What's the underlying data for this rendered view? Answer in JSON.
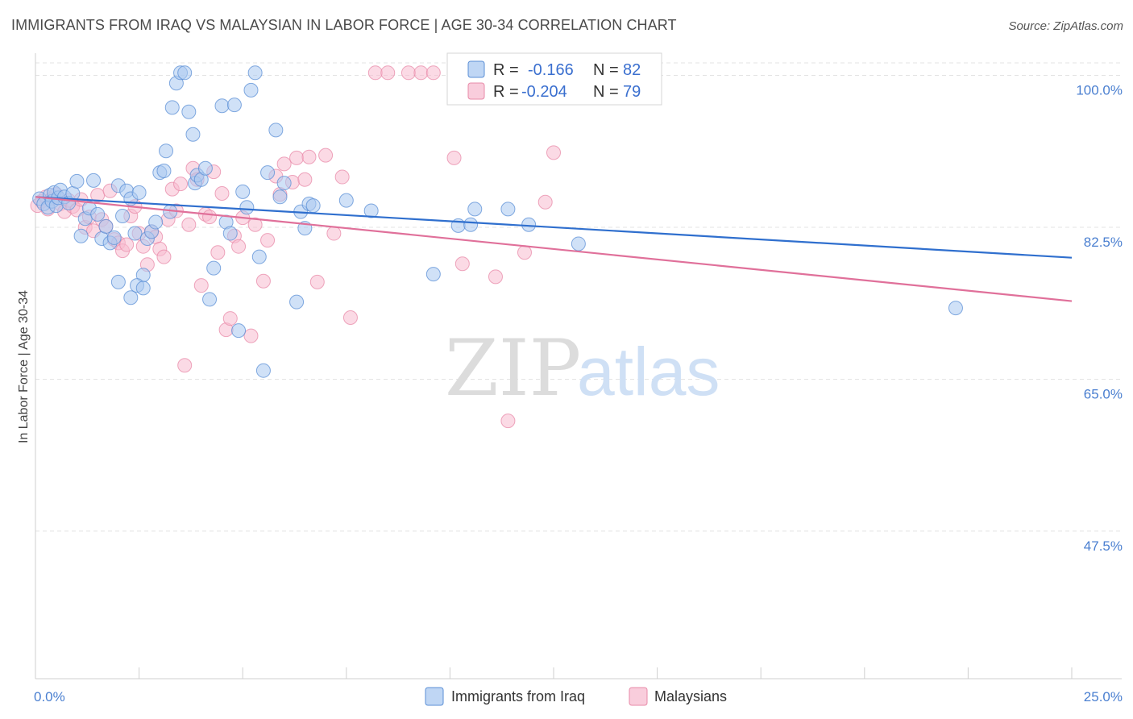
{
  "header": {
    "title": "IMMIGRANTS FROM IRAQ VS MALAYSIAN IN LABOR FORCE | AGE 30-34 CORRELATION CHART",
    "source": "Source: ZipAtlas.com"
  },
  "legend": {
    "rows": [
      {
        "r_label": "R =",
        "r_value": "-0.166",
        "n_label": "N =",
        "n_value": "82"
      },
      {
        "r_label": "R =",
        "r_value": "-0.204",
        "n_label": "N =",
        "n_value": "79"
      }
    ]
  },
  "colors": {
    "iraq_fill": "#a9c8f0",
    "iraq_stroke": "#5b8fd6",
    "iraq_line": "#2f6fce",
    "malay_fill": "#f7bcd0",
    "malay_stroke": "#e88aa8",
    "malay_line": "#e0709a",
    "grid": "#e3e3e3",
    "tick_text": "#4a7fd0"
  },
  "chart_data": {
    "type": "scatter",
    "xlabel": "",
    "ylabel": "In Labor Force | Age 30-34",
    "xlim": [
      0,
      25
    ],
    "ylim": [
      30.5,
      102
    ],
    "x_tick_labels": [
      {
        "value": 0,
        "label": "0.0%"
      },
      {
        "value": 25,
        "label": "25.0%"
      }
    ],
    "y_tick_labels": [
      {
        "value": 100,
        "label": "100.0%"
      },
      {
        "value": 82.5,
        "label": "82.5%"
      },
      {
        "value": 65,
        "label": "65.0%"
      },
      {
        "value": 47.5,
        "label": "47.5%"
      }
    ],
    "grid": true,
    "watermark": {
      "zip": "ZIP",
      "atlas": "atlas"
    },
    "series": [
      {
        "name": "Immigrants from Iraq",
        "r": -0.166,
        "n": 82,
        "trend": {
          "x": [
            0,
            25
          ],
          "y": [
            86.0,
            79.0
          ]
        },
        "points": [
          [
            0.1,
            85.8
          ],
          [
            0.2,
            85.2
          ],
          [
            0.3,
            84.8
          ],
          [
            0.35,
            86.2
          ],
          [
            0.4,
            85.5
          ],
          [
            0.45,
            86.5
          ],
          [
            0.5,
            85.0
          ],
          [
            0.55,
            85.9
          ],
          [
            0.6,
            86.8
          ],
          [
            0.7,
            86.0
          ],
          [
            0.8,
            85.3
          ],
          [
            0.9,
            86.4
          ],
          [
            1.0,
            87.8
          ],
          [
            1.1,
            81.5
          ],
          [
            1.2,
            83.5
          ],
          [
            1.3,
            84.7
          ],
          [
            1.4,
            87.9
          ],
          [
            1.5,
            84.0
          ],
          [
            1.6,
            81.2
          ],
          [
            1.7,
            82.6
          ],
          [
            1.8,
            80.7
          ],
          [
            1.9,
            81.3
          ],
          [
            2.0,
            87.3
          ],
          [
            2.1,
            83.8
          ],
          [
            2.2,
            86.7
          ],
          [
            2.3,
            85.8
          ],
          [
            2.4,
            81.8
          ],
          [
            2.5,
            86.5
          ],
          [
            2.6,
            77.0
          ],
          [
            2.7,
            81.2
          ],
          [
            2.0,
            76.2
          ],
          [
            2.3,
            74.4
          ],
          [
            2.45,
            75.8
          ],
          [
            2.6,
            75.5
          ],
          [
            2.8,
            82.0
          ],
          [
            2.9,
            83.1
          ],
          [
            3.0,
            88.8
          ],
          [
            3.1,
            89.0
          ],
          [
            3.15,
            91.3
          ],
          [
            3.25,
            84.3
          ],
          [
            3.3,
            96.3
          ],
          [
            3.4,
            99.1
          ],
          [
            3.5,
            100.3
          ],
          [
            3.6,
            100.3
          ],
          [
            3.7,
            95.8
          ],
          [
            3.8,
            93.2
          ],
          [
            3.85,
            87.6
          ],
          [
            3.9,
            88.5
          ],
          [
            4.0,
            88.0
          ],
          [
            4.1,
            89.3
          ],
          [
            4.2,
            74.2
          ],
          [
            4.3,
            77.8
          ],
          [
            4.5,
            96.5
          ],
          [
            4.6,
            83.1
          ],
          [
            4.7,
            81.8
          ],
          [
            4.8,
            96.6
          ],
          [
            4.9,
            70.6
          ],
          [
            5.0,
            86.6
          ],
          [
            5.1,
            84.8
          ],
          [
            5.2,
            98.3
          ],
          [
            5.3,
            100.3
          ],
          [
            5.4,
            79.1
          ],
          [
            5.5,
            66.0
          ],
          [
            5.6,
            88.8
          ],
          [
            5.8,
            93.7
          ],
          [
            5.9,
            86.0
          ],
          [
            6.0,
            87.6
          ],
          [
            6.3,
            73.9
          ],
          [
            6.4,
            84.3
          ],
          [
            6.5,
            82.4
          ],
          [
            6.6,
            85.2
          ],
          [
            6.7,
            85.0
          ],
          [
            7.5,
            85.6
          ],
          [
            8.1,
            84.4
          ],
          [
            9.6,
            77.1
          ],
          [
            10.2,
            82.7
          ],
          [
            10.6,
            84.6
          ],
          [
            10.5,
            82.8
          ],
          [
            11.4,
            84.6
          ],
          [
            11.9,
            82.8
          ],
          [
            13.1,
            80.6
          ],
          [
            22.2,
            73.2
          ]
        ]
      },
      {
        "name": "Malaysians",
        "r": -0.204,
        "n": 79,
        "trend": {
          "x": [
            0,
            25
          ],
          "y": [
            86.0,
            74.0
          ]
        },
        "points": [
          [
            0.05,
            85.0
          ],
          [
            0.15,
            85.5
          ],
          [
            0.25,
            86.0
          ],
          [
            0.3,
            84.6
          ],
          [
            0.4,
            85.8
          ],
          [
            0.5,
            86.3
          ],
          [
            0.6,
            85.2
          ],
          [
            0.7,
            84.3
          ],
          [
            0.8,
            85.6
          ],
          [
            0.9,
            84.9
          ],
          [
            1.0,
            84.5
          ],
          [
            1.1,
            85.7
          ],
          [
            1.2,
            82.5
          ],
          [
            1.3,
            83.7
          ],
          [
            1.4,
            82.1
          ],
          [
            1.5,
            86.2
          ],
          [
            1.6,
            83.4
          ],
          [
            1.7,
            82.6
          ],
          [
            1.8,
            86.7
          ],
          [
            1.9,
            81.1
          ],
          [
            2.0,
            80.7
          ],
          [
            2.1,
            79.8
          ],
          [
            2.2,
            80.5
          ],
          [
            2.3,
            83.8
          ],
          [
            2.4,
            84.9
          ],
          [
            2.5,
            81.8
          ],
          [
            2.6,
            80.3
          ],
          [
            2.7,
            78.2
          ],
          [
            2.8,
            82.0
          ],
          [
            2.9,
            81.4
          ],
          [
            3.0,
            80.0
          ],
          [
            3.1,
            79.1
          ],
          [
            3.2,
            83.4
          ],
          [
            3.3,
            86.9
          ],
          [
            3.4,
            84.4
          ],
          [
            3.5,
            87.5
          ],
          [
            3.6,
            66.6
          ],
          [
            3.7,
            82.8
          ],
          [
            3.8,
            89.3
          ],
          [
            3.9,
            88.0
          ],
          [
            4.0,
            75.8
          ],
          [
            4.1,
            84.0
          ],
          [
            4.2,
            83.7
          ],
          [
            4.3,
            88.9
          ],
          [
            4.4,
            79.6
          ],
          [
            4.5,
            86.4
          ],
          [
            4.6,
            70.7
          ],
          [
            4.7,
            72.0
          ],
          [
            4.8,
            81.5
          ],
          [
            4.9,
            80.3
          ],
          [
            5.0,
            83.6
          ],
          [
            5.2,
            70.0
          ],
          [
            5.3,
            82.8
          ],
          [
            5.5,
            76.3
          ],
          [
            5.6,
            81.0
          ],
          [
            5.8,
            88.4
          ],
          [
            5.9,
            86.3
          ],
          [
            6.0,
            89.8
          ],
          [
            6.2,
            87.7
          ],
          [
            6.3,
            90.5
          ],
          [
            6.5,
            88.0
          ],
          [
            6.6,
            90.6
          ],
          [
            6.8,
            76.2
          ],
          [
            7.0,
            90.8
          ],
          [
            7.2,
            81.8
          ],
          [
            7.4,
            88.3
          ],
          [
            7.6,
            72.1
          ],
          [
            8.2,
            100.3
          ],
          [
            8.5,
            100.3
          ],
          [
            9.0,
            100.3
          ],
          [
            9.3,
            100.3
          ],
          [
            9.6,
            100.3
          ],
          [
            10.1,
            90.5
          ],
          [
            10.3,
            78.3
          ],
          [
            11.1,
            76.8
          ],
          [
            11.4,
            60.2
          ],
          [
            11.8,
            79.6
          ],
          [
            12.3,
            85.4
          ],
          [
            12.5,
            91.1
          ]
        ]
      }
    ]
  },
  "bottom_legend": [
    {
      "label": "Immigrants from Iraq"
    },
    {
      "label": "Malaysians"
    }
  ]
}
